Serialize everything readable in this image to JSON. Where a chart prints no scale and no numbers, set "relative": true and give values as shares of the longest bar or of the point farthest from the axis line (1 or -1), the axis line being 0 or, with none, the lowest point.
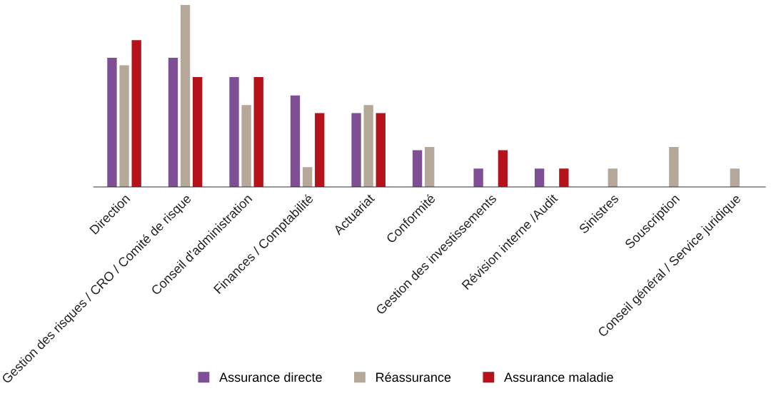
{
  "chart_data": {
    "type": "bar",
    "relative": true,
    "categories": [
      "Direction",
      "Gestion des risques / CRO / Comité de risque",
      "Conseil d'administration",
      "Finances / Comptabilité",
      "Actuariat",
      "Conformité",
      "Gestion des investissements",
      "Révision interne /Audit",
      "Sinistres",
      "Souscription",
      "Conseil général / Service juridique"
    ],
    "series": [
      {
        "name": "Assurance directe",
        "color": "#7f4f96",
        "values": [
          0.709,
          0.709,
          0.603,
          0.502,
          0.405,
          0.202,
          0.101,
          0.101,
          null,
          null,
          null
        ]
      },
      {
        "name": "Réassurance",
        "color": "#b5a898",
        "values": [
          0.668,
          1,
          0.449,
          0.109,
          0.449,
          0.219,
          null,
          null,
          0.101,
          0.219,
          0.101
        ]
      },
      {
        "name": "Assurance maladie",
        "color": "#b5121b",
        "values": [
          0.806,
          0.603,
          0.603,
          0.405,
          0.405,
          null,
          0.202,
          0.101,
          null,
          null,
          null
        ]
      }
    ],
    "legend": "bottom",
    "grid": false
  }
}
